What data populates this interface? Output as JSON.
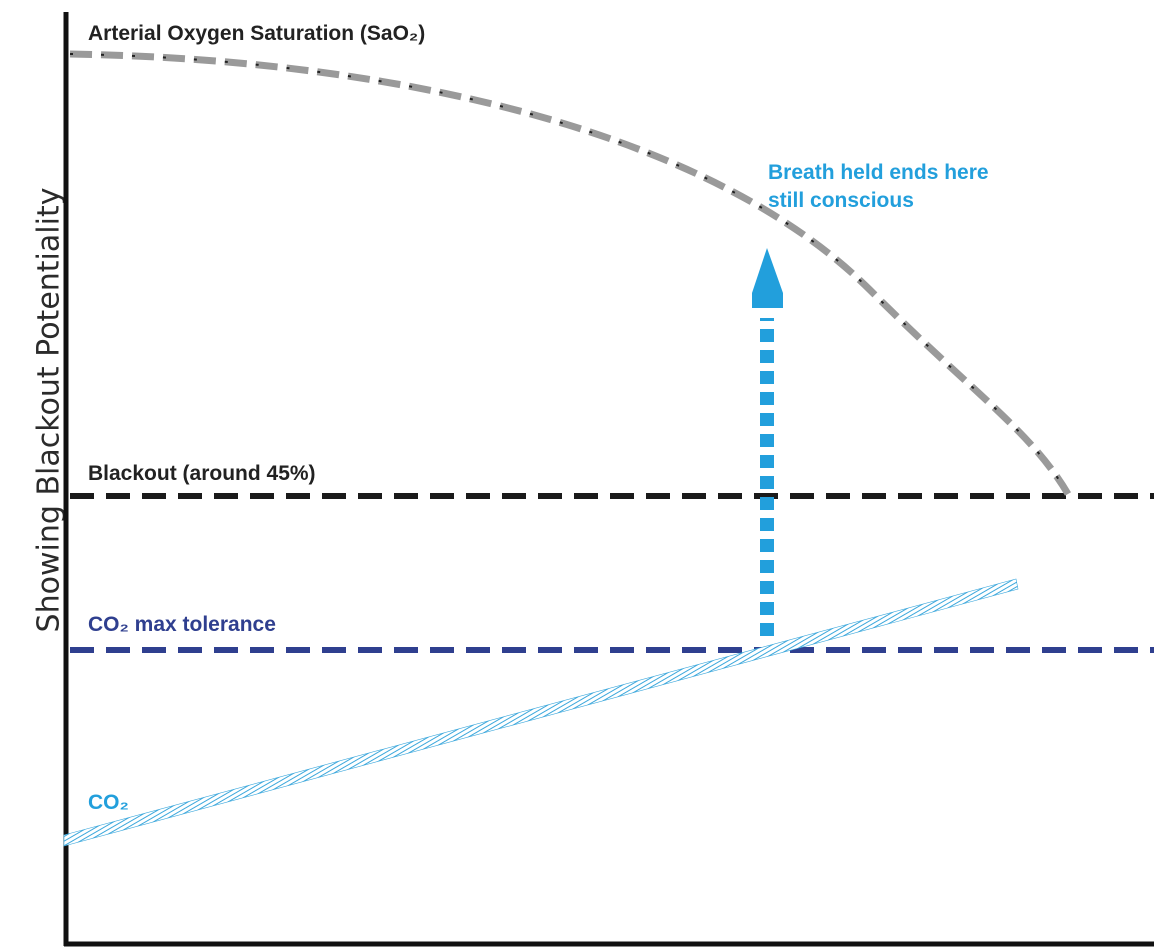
{
  "diagram": {
    "y_axis_label": "Showing Blackout Potentiality",
    "sao2_label": "Arterial Oxygen Saturation (SaO₂)",
    "blackout_label": "Blackout (around 45%)",
    "co2_max_label": "CO₂ max tolerance",
    "co2_label": "CO₂",
    "breath_label_line1": "Breath held ends here",
    "breath_label_line2": "still conscious"
  },
  "colors": {
    "axis": "#111111",
    "sao2_curve": "#9a9a9a",
    "sao2_curve_dots": "#222222",
    "blackout_line": "#1a1a1a",
    "co2_max_line": "#2f3f8f",
    "co2_line": "#3aa7dc",
    "arrow": "#229fdc",
    "label_dark": "#222222",
    "label_navy": "#2f3f8f",
    "label_blue": "#229fdc"
  }
}
